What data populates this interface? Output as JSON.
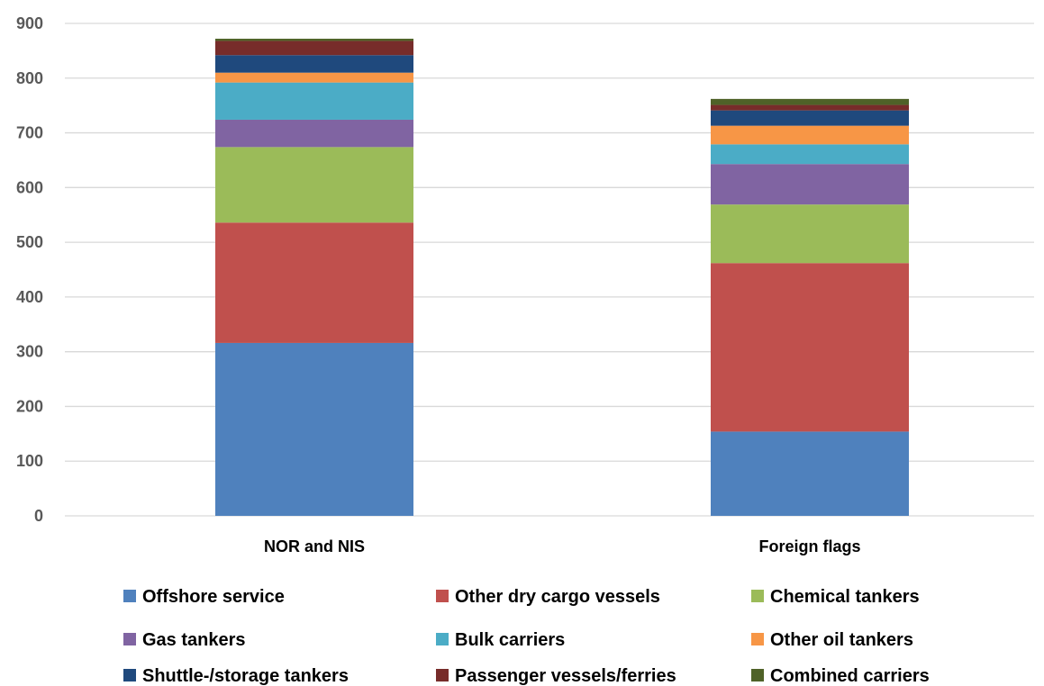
{
  "chart_data": {
    "type": "bar",
    "stacked": true,
    "categories": [
      "NOR and NIS",
      "Foreign flags"
    ],
    "series": [
      {
        "name": "Offshore service",
        "color": "#4F81BD",
        "values": [
          316,
          154
        ]
      },
      {
        "name": "Other dry cargo vessels",
        "color": "#C0504D",
        "values": [
          220,
          308
        ]
      },
      {
        "name": "Chemical tankers",
        "color": "#9BBB59",
        "values": [
          138,
          107
        ]
      },
      {
        "name": "Gas tankers",
        "color": "#8064A2",
        "values": [
          50,
          74
        ]
      },
      {
        "name": "Bulk carriers",
        "color": "#4BACC6",
        "values": [
          68,
          36
        ]
      },
      {
        "name": "Other oil tankers",
        "color": "#F79646",
        "values": [
          18,
          34
        ]
      },
      {
        "name": "Shuttle-/storage tankers",
        "color": "#1F497D",
        "values": [
          32,
          28
        ]
      },
      {
        "name": "Passenger vessels/ferries",
        "color": "#772C2A",
        "values": [
          26,
          10
        ]
      },
      {
        "name": "Combined carriers",
        "color": "#4F6228",
        "values": [
          4,
          11
        ]
      }
    ],
    "y_ticks": [
      "0",
      "100",
      "200",
      "300",
      "400",
      "500",
      "600",
      "700",
      "800",
      "900"
    ],
    "ylim": [
      0,
      900
    ],
    "grid": true,
    "legend_position": "bottom"
  }
}
